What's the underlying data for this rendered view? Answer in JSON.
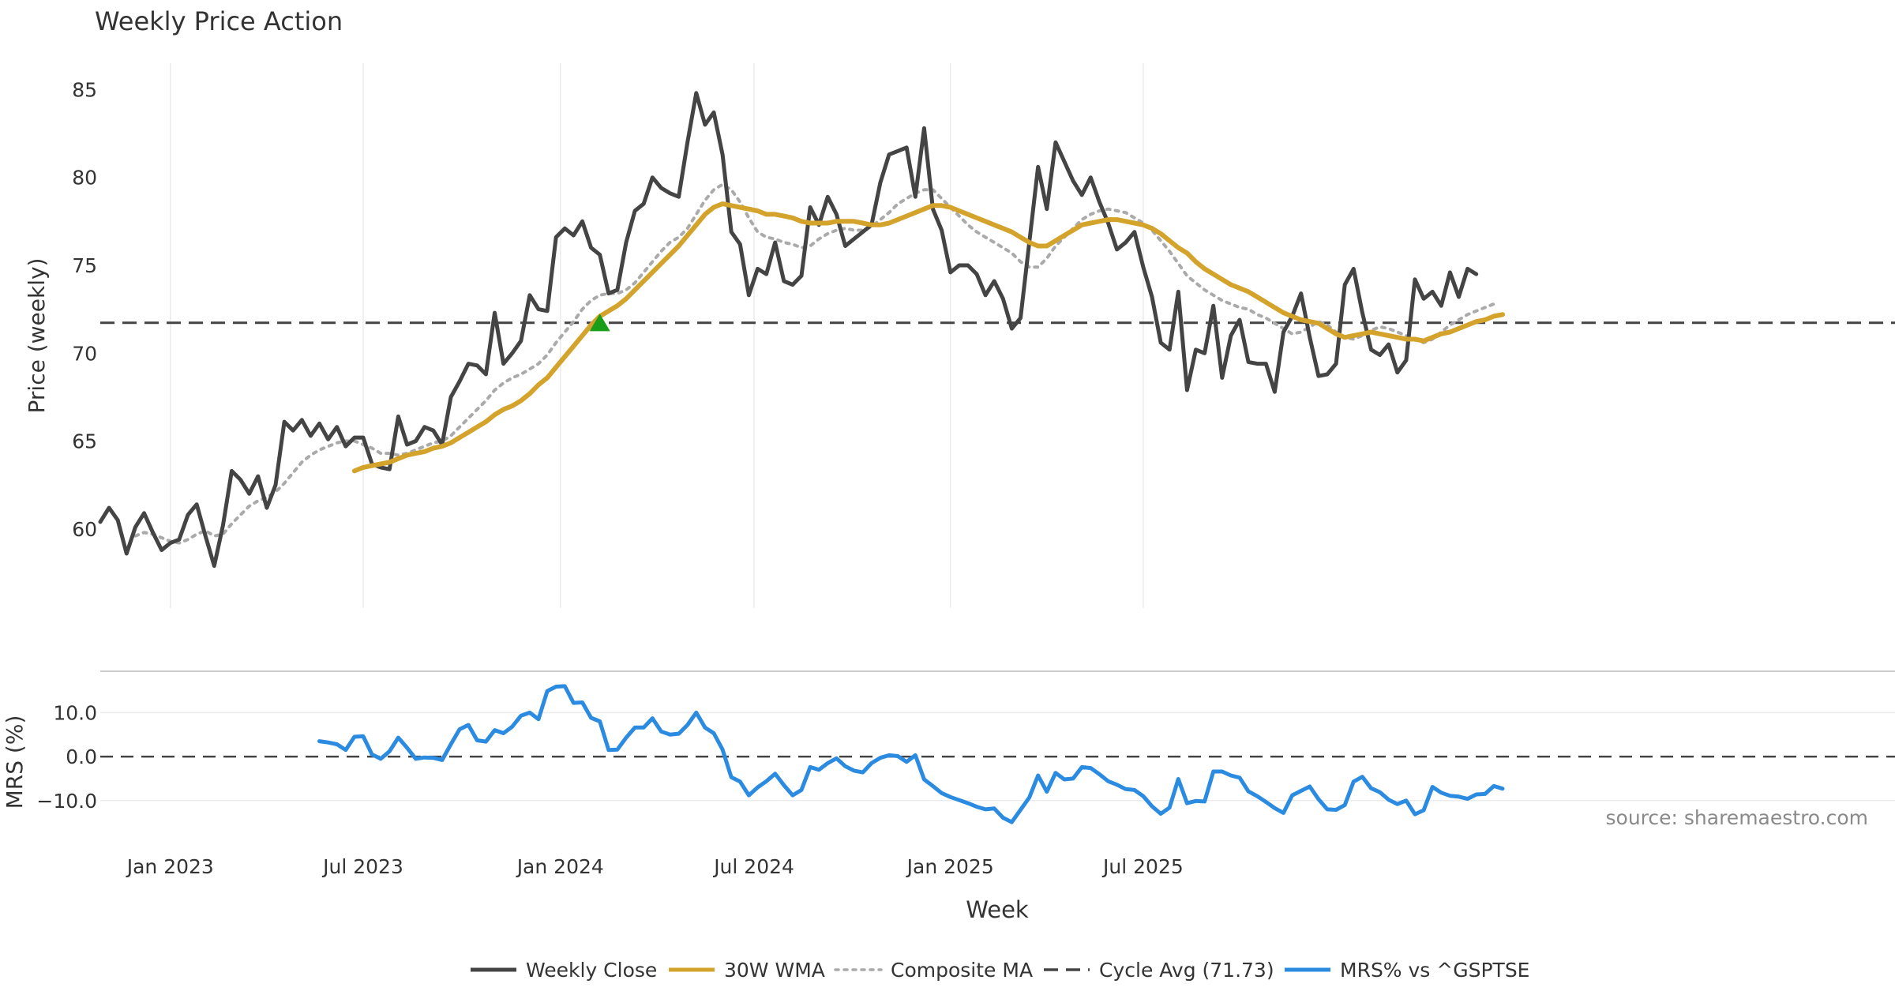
{
  "chart_data": {
    "type": "line",
    "title": "Weekly Price Action",
    "xlabel": "Week",
    "x_tick_labels": [
      "Jan 2023",
      "Jul 2023",
      "Jan 2024",
      "Jul 2024",
      "Jan 2025",
      "Jul 2025"
    ],
    "source_note": "source: sharemaestro.com",
    "price_panel": {
      "ylabel": "Price (weekly)",
      "ylim": [
        55.5,
        86.5
      ],
      "yticks": [
        60,
        65,
        70,
        75,
        80,
        85
      ],
      "cycle_avg": 71.73,
      "signal_marker": {
        "week": 57,
        "value": 71.7,
        "color": "#1a9e1a"
      },
      "series": [
        {
          "name": "Weekly Close",
          "color": "#444444",
          "start_week": 0,
          "values": [
            60.4,
            61.2,
            60.5,
            58.6,
            60.1,
            60.9,
            59.8,
            58.8,
            59.2,
            59.4,
            60.8,
            61.4,
            59.6,
            57.9,
            60.2,
            63.3,
            62.8,
            62.0,
            63.0,
            61.2,
            62.5,
            66.1,
            65.6,
            66.2,
            65.3,
            66.0,
            65.1,
            65.8,
            64.7,
            65.2,
            65.2,
            63.7,
            63.5,
            63.4,
            66.4,
            64.8,
            65.0,
            65.8,
            65.6,
            64.8,
            67.5,
            68.4,
            69.4,
            69.3,
            68.8,
            72.3,
            69.4,
            70.0,
            70.7,
            73.3,
            72.5,
            72.4,
            76.6,
            77.1,
            76.7,
            77.5,
            76.0,
            75.6,
            73.4,
            73.6,
            76.3,
            78.1,
            78.5,
            80.0,
            79.4,
            79.1,
            78.9,
            82.0,
            84.8,
            83.0,
            83.7,
            81.3,
            76.9,
            76.2,
            73.3,
            74.8,
            74.5,
            76.3,
            74.1,
            73.9,
            74.4,
            78.3,
            77.3,
            78.9,
            77.9,
            76.1,
            76.5,
            76.9,
            77.3,
            79.7,
            81.3,
            81.5,
            81.7,
            78.9,
            82.8,
            78.2,
            77.0,
            74.6,
            75.0,
            75.0,
            74.5,
            73.3,
            74.1,
            73.1,
            71.4,
            72.0,
            76.3,
            80.6,
            78.2,
            82.0,
            80.9,
            79.8,
            79.0,
            80.0,
            78.6,
            77.4,
            75.9,
            76.3,
            76.9,
            74.9,
            73.2,
            70.6,
            70.2,
            73.5,
            67.9,
            70.2,
            70.0,
            72.7,
            68.6,
            71.0,
            71.9,
            69.5,
            69.4,
            69.4,
            67.8,
            71.2,
            72.1,
            73.4,
            70.9,
            68.7,
            68.8,
            69.4,
            73.9,
            74.8,
            72.3,
            70.2,
            69.9,
            70.5,
            68.9,
            69.6,
            74.2,
            73.1,
            73.5,
            72.7,
            74.6,
            73.2,
            74.8,
            74.5
          ]
        },
        {
          "name": "30W WMA",
          "color": "#d4a32c",
          "start_week": 29,
          "values": [
            63.3,
            63.5,
            63.6,
            63.7,
            63.8,
            64.0,
            64.2,
            64.3,
            64.4,
            64.6,
            64.7,
            64.9,
            65.2,
            65.5,
            65.8,
            66.1,
            66.5,
            66.8,
            67.0,
            67.3,
            67.7,
            68.2,
            68.6,
            69.2,
            69.8,
            70.4,
            71.0,
            71.6,
            72.1,
            72.4,
            72.7,
            73.1,
            73.6,
            74.1,
            74.6,
            75.1,
            75.6,
            76.1,
            76.7,
            77.3,
            77.9,
            78.3,
            78.5,
            78.4,
            78.3,
            78.2,
            78.1,
            77.9,
            77.9,
            77.8,
            77.7,
            77.5,
            77.4,
            77.4,
            77.4,
            77.5,
            77.5,
            77.5,
            77.4,
            77.3,
            77.3,
            77.4,
            77.6,
            77.8,
            78.0,
            78.2,
            78.4,
            78.4,
            78.3,
            78.1,
            77.9,
            77.7,
            77.5,
            77.3,
            77.1,
            76.9,
            76.6,
            76.3,
            76.1,
            76.1,
            76.4,
            76.7,
            77.0,
            77.3,
            77.4,
            77.5,
            77.6,
            77.6,
            77.5,
            77.4,
            77.3,
            77.1,
            76.8,
            76.4,
            76.0,
            75.7,
            75.2,
            74.8,
            74.5,
            74.2,
            73.9,
            73.7,
            73.5,
            73.2,
            72.9,
            72.6,
            72.3,
            72.1,
            71.9,
            71.8,
            71.7,
            71.4,
            71.1,
            70.9,
            71.0,
            71.1,
            71.2,
            71.1,
            71.0,
            70.9,
            70.8,
            70.8,
            70.7,
            70.9,
            71.1,
            71.2,
            71.4,
            71.6,
            71.8,
            71.9,
            72.1,
            72.2
          ]
        },
        {
          "name": "Composite MA",
          "color": "#aaaaaa",
          "dashed": true,
          "start_week": 4,
          "values": [
            59.6,
            59.8,
            59.7,
            59.5,
            59.3,
            59.2,
            59.4,
            59.7,
            59.9,
            59.6,
            59.7,
            60.3,
            60.8,
            61.3,
            61.6,
            61.8,
            62.1,
            62.6,
            63.2,
            63.8,
            64.2,
            64.5,
            64.7,
            64.9,
            65.0,
            65.0,
            64.8,
            64.6,
            64.3,
            64.3,
            64.2,
            64.3,
            64.5,
            64.7,
            64.9,
            65.0,
            65.3,
            65.8,
            66.3,
            66.8,
            67.3,
            67.9,
            68.3,
            68.6,
            68.8,
            69.1,
            69.4,
            69.9,
            70.6,
            71.2,
            71.8,
            72.5,
            73.0,
            73.3,
            73.4,
            73.4,
            73.6,
            74.0,
            74.6,
            75.2,
            75.8,
            76.3,
            76.6,
            77.1,
            77.9,
            78.7,
            79.3,
            79.6,
            79.3,
            78.6,
            77.7,
            76.9,
            76.6,
            76.5,
            76.3,
            76.2,
            76.0,
            76.1,
            76.5,
            76.8,
            77.0,
            77.1,
            77.0,
            77.0,
            77.2,
            77.6,
            78.0,
            78.5,
            78.8,
            79.1,
            79.3,
            79.3,
            78.8,
            78.3,
            77.8,
            77.3,
            76.9,
            76.6,
            76.3,
            76.0,
            75.7,
            75.2,
            74.9,
            74.9,
            75.4,
            76.1,
            76.6,
            77.1,
            77.6,
            77.9,
            78.1,
            78.2,
            78.1,
            78.0,
            77.7,
            77.4,
            77.0,
            76.4,
            75.8,
            75.1,
            74.4,
            74.0,
            73.6,
            73.3,
            73.0,
            72.8,
            72.6,
            72.5,
            72.2,
            72.0,
            71.7,
            71.4,
            71.1,
            71.2,
            71.5,
            71.8,
            71.6,
            71.2,
            70.9,
            70.8,
            71.0,
            71.3,
            71.5,
            71.4,
            71.2,
            71.0,
            70.8,
            70.6,
            70.8,
            71.2,
            71.6,
            71.9,
            72.2,
            72.4,
            72.6,
            72.8
          ]
        }
      ]
    },
    "mrs_panel": {
      "ylabel": "MRS (%)",
      "ylim": [
        -16.5,
        18.5
      ],
      "yticks": [
        10.0,
        0.0,
        -10.0
      ],
      "ytick_labels": [
        "10.0",
        "0.0",
        "−10.0"
      ],
      "zero_line": 0,
      "series": [
        {
          "name": "MRS% vs ^GSPTSE",
          "color": "#2b8be0",
          "start_week": 25,
          "values": [
            3.5,
            3.2,
            2.8,
            1.5,
            4.5,
            4.6,
            0.5,
            -0.5,
            1.2,
            4.3,
            2.0,
            -0.5,
            -0.2,
            -0.3,
            -0.8,
            2.8,
            6.2,
            7.2,
            3.7,
            3.4,
            6.0,
            5.3,
            6.8,
            9.3,
            10.0,
            8.5,
            14.9,
            15.9,
            16.0,
            12.2,
            12.3,
            8.8,
            8.0,
            1.5,
            1.6,
            4.3,
            6.6,
            6.6,
            8.7,
            5.7,
            5.0,
            5.2,
            7.2,
            10.0,
            6.6,
            5.3,
            1.6,
            -4.7,
            -5.7,
            -8.8,
            -7.0,
            -5.6,
            -3.9,
            -6.5,
            -8.8,
            -7.6,
            -2.4,
            -3.0,
            -1.5,
            -0.4,
            -2.2,
            -3.2,
            -3.6,
            -1.5,
            -0.3,
            0.3,
            0.1,
            -1.2,
            0.3,
            -5.2,
            -6.7,
            -8.3,
            -9.2,
            -9.9,
            -10.6,
            -11.4,
            -12.0,
            -11.8,
            -13.9,
            -14.9,
            -12.1,
            -9.3,
            -4.3,
            -8.0,
            -3.7,
            -5.2,
            -5.0,
            -2.4,
            -2.6,
            -4.0,
            -5.6,
            -6.4,
            -7.4,
            -7.6,
            -9.0,
            -11.3,
            -13.0,
            -11.6,
            -5.1,
            -10.6,
            -10.1,
            -10.2,
            -3.4,
            -3.4,
            -4.3,
            -4.8,
            -7.9,
            -9.0,
            -10.3,
            -11.7,
            -12.8,
            -8.8,
            -7.8,
            -6.8,
            -9.7,
            -12.0,
            -12.1,
            -11.0,
            -5.7,
            -4.6,
            -7.2,
            -8.1,
            -9.8,
            -10.8,
            -10.0,
            -13.1,
            -12.2,
            -6.9,
            -8.2,
            -8.9,
            -9.1,
            -9.6,
            -8.6,
            -8.5,
            -6.7,
            -7.3
          ]
        }
      ]
    },
    "legend": {
      "placement": "bottom-center",
      "items": [
        {
          "label": "Weekly Close",
          "color": "#444444",
          "style": "solid"
        },
        {
          "label": "30W WMA",
          "color": "#d4a32c",
          "style": "solid"
        },
        {
          "label": "Composite MA",
          "color": "#aaaaaa",
          "style": "dotted"
        },
        {
          "label": "Cycle Avg (71.73)",
          "color": "#444444",
          "style": "dashed"
        },
        {
          "label": "MRS% vs ^GSPTSE",
          "color": "#2b8be0",
          "style": "solid"
        }
      ]
    }
  }
}
